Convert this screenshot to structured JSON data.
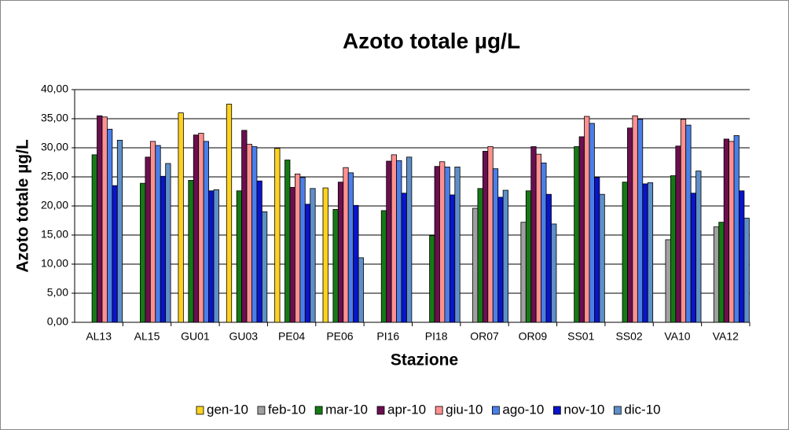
{
  "chart_data": {
    "type": "bar",
    "title": "Azoto totale µg/L",
    "y_label": "Azoto totale µg/L",
    "x_label": "Stazione",
    "categories": [
      "AL13",
      "AL15",
      "GU01",
      "GU03",
      "PE04",
      "PE06",
      "PI16",
      "PI18",
      "OR07",
      "OR09",
      "SS01",
      "SS02",
      "VA10",
      "VA12"
    ],
    "series": [
      {
        "name": "gen-10",
        "color": "#ffd21f",
        "values": [
          null,
          null,
          36.0,
          37.5,
          29.9,
          23.1,
          null,
          null,
          null,
          null,
          null,
          null,
          null,
          null
        ]
      },
      {
        "name": "feb-10",
        "color": "#a0a0a0",
        "values": [
          null,
          null,
          null,
          null,
          null,
          null,
          null,
          null,
          19.6,
          17.2,
          null,
          null,
          14.2,
          16.4
        ]
      },
      {
        "name": "mar-10",
        "color": "#157a15",
        "values": [
          28.8,
          23.9,
          24.4,
          22.6,
          27.9,
          19.4,
          19.2,
          14.9,
          23.0,
          22.6,
          30.2,
          24.1,
          25.2,
          17.2
        ]
      },
      {
        "name": "apr-10",
        "color": "#6a0f4f",
        "values": [
          35.5,
          28.4,
          32.2,
          33.0,
          23.2,
          24.1,
          27.7,
          26.8,
          29.4,
          30.2,
          31.9,
          33.4,
          30.3,
          31.5
        ]
      },
      {
        "name": "giu-10",
        "color": "#ff9090",
        "values": [
          35.3,
          31.1,
          32.5,
          30.6,
          25.5,
          26.6,
          28.8,
          27.6,
          30.2,
          28.9,
          35.4,
          35.5,
          34.9,
          31.1
        ]
      },
      {
        "name": "ago-10",
        "color": "#4a7fe8",
        "values": [
          33.2,
          30.4,
          31.1,
          30.2,
          24.9,
          25.7,
          27.8,
          26.7,
          26.4,
          27.4,
          34.2,
          34.9,
          33.9,
          32.1
        ]
      },
      {
        "name": "nov-10",
        "color": "#0a14c8",
        "values": [
          23.5,
          25.1,
          22.6,
          24.3,
          20.3,
          20.1,
          22.2,
          21.9,
          21.5,
          22.0,
          24.9,
          23.8,
          22.2,
          22.6
        ]
      },
      {
        "name": "dic-10",
        "color": "#5f8fc8",
        "values": [
          31.3,
          27.3,
          22.8,
          19.0,
          23.0,
          11.1,
          28.4,
          26.7,
          22.7,
          16.9,
          22.0,
          24.0,
          26.0,
          17.9
        ]
      }
    ],
    "ylim": [
      0,
      40
    ],
    "yticks": [
      {
        "value": 0,
        "label": "0,00"
      },
      {
        "value": 5,
        "label": "5,00"
      },
      {
        "value": 10,
        "label": "10,00"
      },
      {
        "value": 15,
        "label": "15,00"
      },
      {
        "value": 20,
        "label": "20,00"
      },
      {
        "value": 25,
        "label": "25,00"
      },
      {
        "value": 30,
        "label": "30,00"
      },
      {
        "value": 35,
        "label": "35,00"
      },
      {
        "value": 40,
        "label": "40,00"
      }
    ],
    "grid": true,
    "legend": "bottom"
  }
}
